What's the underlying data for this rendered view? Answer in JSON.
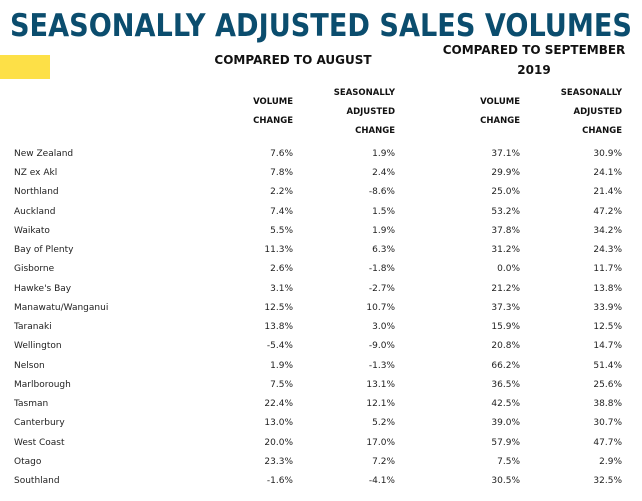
{
  "header": {
    "title": "SEASONALLY ADJUSTED SALES VOLUMES"
  },
  "table": {
    "groups": [
      "COMPARED TO AUGUST",
      "COMPARED TO SEPTEMBER 2019"
    ],
    "columns": [
      "VOLUME CHANGE",
      "SEASONALLY ADJUSTED CHANGE",
      "VOLUME CHANGE",
      "SEASONALLY ADJUSTED CHANGE"
    ],
    "rows": [
      [
        "New Zealand",
        "7.6%",
        "1.9%",
        "37.1%",
        "30.9%"
      ],
      [
        "NZ ex Akl",
        "7.8%",
        "2.4%",
        "29.9%",
        "24.1%"
      ],
      [
        "Northland",
        "2.2%",
        "-8.6%",
        "25.0%",
        "21.4%"
      ],
      [
        "Auckland",
        "7.4%",
        "1.5%",
        "53.2%",
        "47.2%"
      ],
      [
        "Waikato",
        "5.5%",
        "1.9%",
        "37.8%",
        "34.2%"
      ],
      [
        "Bay of Plenty",
        "11.3%",
        "6.3%",
        "31.2%",
        "24.3%"
      ],
      [
        "Gisborne",
        "2.6%",
        "-1.8%",
        "0.0%",
        "11.7%"
      ],
      [
        "Hawke's Bay",
        "3.1%",
        "-2.7%",
        "21.2%",
        "13.8%"
      ],
      [
        "Manawatu/Wanganui",
        "12.5%",
        "10.7%",
        "37.3%",
        "33.9%"
      ],
      [
        "Taranaki",
        "13.8%",
        "3.0%",
        "15.9%",
        "12.5%"
      ],
      [
        "Wellington",
        "-5.4%",
        "-9.0%",
        "20.8%",
        "14.7%"
      ],
      [
        "Nelson",
        "1.9%",
        "-1.3%",
        "66.2%",
        "51.4%"
      ],
      [
        "Marlborough",
        "7.5%",
        "13.1%",
        "36.5%",
        "25.6%"
      ],
      [
        "Tasman",
        "22.4%",
        "12.1%",
        "42.5%",
        "38.8%"
      ],
      [
        "Canterbury",
        "13.0%",
        "5.2%",
        "39.0%",
        "30.7%"
      ],
      [
        "West Coast",
        "20.0%",
        "17.0%",
        "57.9%",
        "47.7%"
      ],
      [
        "Otago",
        "23.3%",
        "7.2%",
        "7.5%",
        "2.9%"
      ],
      [
        "Southland",
        "-1.6%",
        "-4.1%",
        "30.5%",
        "32.5%"
      ]
    ]
  }
}
